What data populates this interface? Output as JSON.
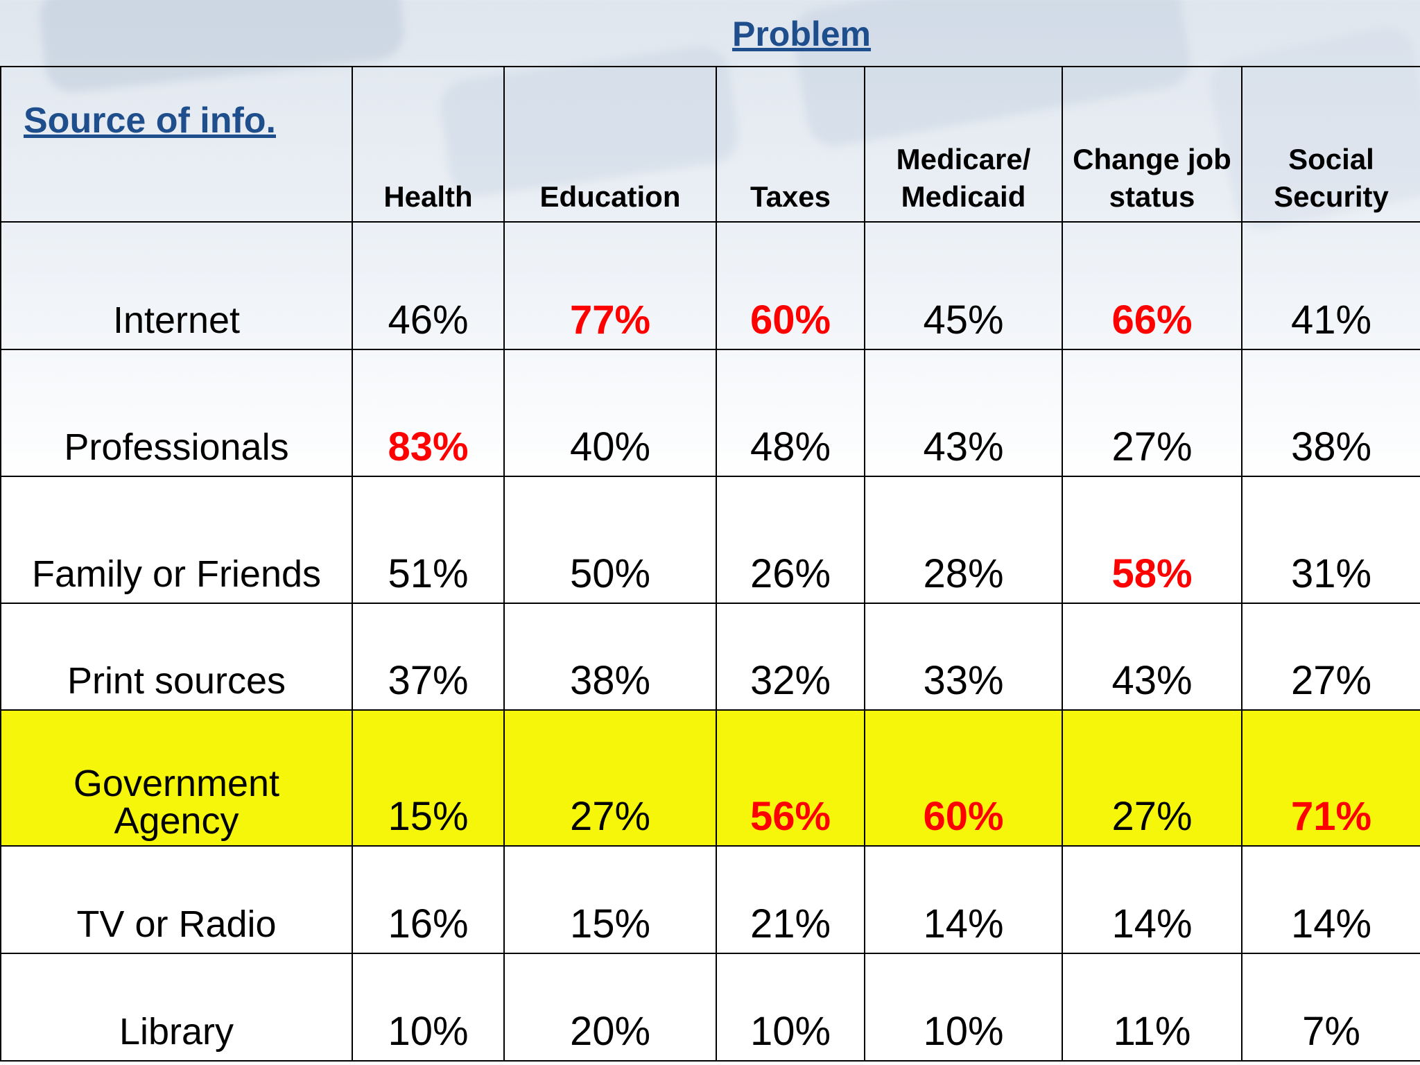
{
  "title": "Problem",
  "chart_data": {
    "type": "table",
    "corner_label": "Source of info.",
    "columns": [
      "Health",
      "Education",
      "Taxes",
      "Medicare/ Medicaid",
      "Change job status",
      "Social Security"
    ],
    "rows": [
      {
        "label": "Internet",
        "values": [
          "46%",
          "77%",
          "60%",
          "45%",
          "66%",
          "41%"
        ],
        "highlighted": [
          false,
          true,
          true,
          false,
          true,
          false
        ]
      },
      {
        "label": "Professionals",
        "values": [
          "83%",
          "40%",
          "48%",
          "43%",
          "27%",
          "38%"
        ],
        "highlighted": [
          true,
          false,
          false,
          false,
          false,
          false
        ]
      },
      {
        "label": "Family or Friends",
        "values": [
          "51%",
          "50%",
          "26%",
          "28%",
          "58%",
          "31%"
        ],
        "highlighted": [
          false,
          false,
          false,
          false,
          true,
          false
        ]
      },
      {
        "label": "Print sources",
        "values": [
          "37%",
          "38%",
          "32%",
          "33%",
          "43%",
          "27%"
        ],
        "highlighted": [
          false,
          false,
          false,
          false,
          false,
          false
        ]
      },
      {
        "label": "Government Agency",
        "values": [
          "15%",
          "27%",
          "56%",
          "60%",
          "27%",
          "71%"
        ],
        "highlighted": [
          false,
          false,
          true,
          true,
          false,
          true
        ],
        "row_highlight": true
      },
      {
        "label": "TV or Radio",
        "values": [
          "16%",
          "15%",
          "21%",
          "14%",
          "14%",
          "14%"
        ],
        "highlighted": [
          false,
          false,
          false,
          false,
          false,
          false
        ]
      },
      {
        "label": "Library",
        "values": [
          "10%",
          "20%",
          "10%",
          "10%",
          "11%",
          "7%"
        ],
        "highlighted": [
          false,
          false,
          false,
          false,
          false,
          false
        ]
      }
    ]
  },
  "colors": {
    "title": "#1f4e8c",
    "highlight_text": "#ff0000",
    "highlight_row": "#f6f60a"
  }
}
